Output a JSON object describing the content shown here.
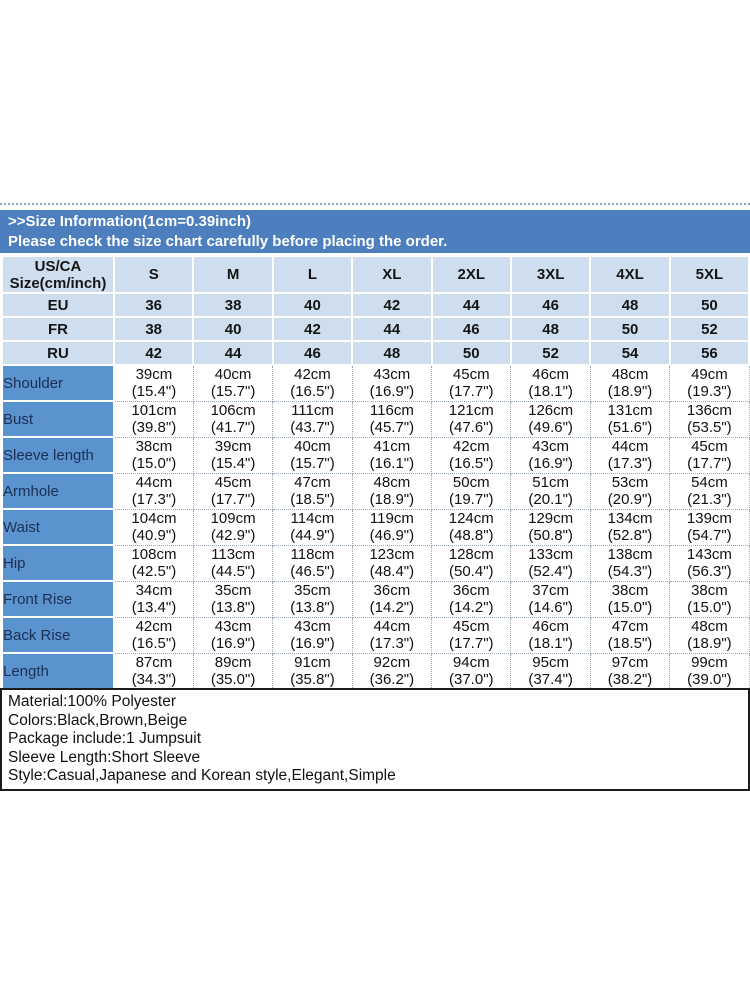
{
  "colors": {
    "banner_bg": "#4d7fbe",
    "banner_text": "#ffffff",
    "header_cell_bg": "#cfdeee",
    "label_cell_bg": "#5b93cf",
    "label_text": "#1b2f55",
    "grid_dotted": "#98a6b6",
    "divider": "#93a5bb"
  },
  "banner": {
    "line1": ">>Size Information(1cm=0.39inch)",
    "line2": "Please check the size chart carefully before placing the order."
  },
  "size_table": {
    "corner_line1": "US/CA",
    "corner_line2": "Size(cm/inch)",
    "size_headers": [
      "S",
      "M",
      "L",
      "XL",
      "2XL",
      "3XL",
      "4XL",
      "5XL"
    ],
    "region_rows": [
      {
        "label": "EU",
        "values": [
          "36",
          "38",
          "40",
          "42",
          "44",
          "46",
          "48",
          "50"
        ]
      },
      {
        "label": "FR",
        "values": [
          "38",
          "40",
          "42",
          "44",
          "46",
          "48",
          "50",
          "52"
        ]
      },
      {
        "label": "RU",
        "values": [
          "42",
          "44",
          "46",
          "48",
          "50",
          "52",
          "54",
          "56"
        ]
      }
    ],
    "measurement_rows": [
      {
        "label": "Shoulder",
        "cm": [
          "39cm",
          "40cm",
          "42cm",
          "43cm",
          "45cm",
          "46cm",
          "48cm",
          "49cm"
        ],
        "inch": [
          "(15.4\")",
          "(15.7\")",
          "(16.5\")",
          "(16.9\")",
          "(17.7\")",
          "(18.1\")",
          "(18.9\")",
          "(19.3\")"
        ]
      },
      {
        "label": "Bust",
        "cm": [
          "101cm",
          "106cm",
          "111cm",
          "116cm",
          "121cm",
          "126cm",
          "131cm",
          "136cm"
        ],
        "inch": [
          "(39.8\")",
          "(41.7\")",
          "(43.7\")",
          "(45.7\")",
          "(47.6\")",
          "(49.6\")",
          "(51.6\")",
          "(53.5\")"
        ]
      },
      {
        "label": "Sleeve length",
        "cm": [
          "38cm",
          "39cm",
          "40cm",
          "41cm",
          "42cm",
          "43cm",
          "44cm",
          "45cm"
        ],
        "inch": [
          "(15.0\")",
          "(15.4\")",
          "(15.7\")",
          "(16.1\")",
          "(16.5\")",
          "(16.9\")",
          "(17.3\")",
          "(17.7\")"
        ]
      },
      {
        "label": "Armhole",
        "cm": [
          "44cm",
          "45cm",
          "47cm",
          "48cm",
          "50cm",
          "51cm",
          "53cm",
          "54cm"
        ],
        "inch": [
          "(17.3\")",
          "(17.7\")",
          "(18.5\")",
          "(18.9\")",
          "(19.7\")",
          "(20.1\")",
          "(20.9\")",
          "(21.3\")"
        ]
      },
      {
        "label": "Waist",
        "cm": [
          "104cm",
          "109cm",
          "114cm",
          "119cm",
          "124cm",
          "129cm",
          "134cm",
          "139cm"
        ],
        "inch": [
          "(40.9\")",
          "(42.9\")",
          "(44.9\")",
          "(46.9\")",
          "(48.8\")",
          "(50.8\")",
          "(52.8\")",
          "(54.7\")"
        ]
      },
      {
        "label": "Hip",
        "cm": [
          "108cm",
          "113cm",
          "118cm",
          "123cm",
          "128cm",
          "133cm",
          "138cm",
          "143cm"
        ],
        "inch": [
          "(42.5\")",
          "(44.5\")",
          "(46.5\")",
          "(48.4\")",
          "(50.4\")",
          "(52.4\")",
          "(54.3\")",
          "(56.3\")"
        ]
      },
      {
        "label": "Front Rise",
        "cm": [
          "34cm",
          "35cm",
          "35cm",
          "36cm",
          "36cm",
          "37cm",
          "38cm",
          "38cm"
        ],
        "inch": [
          "(13.4\")",
          "(13.8\")",
          "(13.8\")",
          "(14.2\")",
          "(14.2\")",
          "(14.6\")",
          "(15.0\")",
          "(15.0\")"
        ]
      },
      {
        "label": "Back Rise",
        "cm": [
          "42cm",
          "43cm",
          "43cm",
          "44cm",
          "45cm",
          "46cm",
          "47cm",
          "48cm"
        ],
        "inch": [
          "(16.5\")",
          "(16.9\")",
          "(16.9\")",
          "(17.3\")",
          "(17.7\")",
          "(18.1\")",
          "(18.5\")",
          "(18.9\")"
        ]
      },
      {
        "label": "Length",
        "cm": [
          "87cm",
          "89cm",
          "91cm",
          "92cm",
          "94cm",
          "95cm",
          "97cm",
          "99cm"
        ],
        "inch": [
          "(34.3\")",
          "(35.0\")",
          "(35.8\")",
          "(36.2\")",
          "(37.0\")",
          "(37.4\")",
          "(38.2\")",
          "(39.0\")"
        ]
      }
    ]
  },
  "product_info": {
    "lines": [
      "Material:100% Polyester",
      "Colors:Black,Brown,Beige",
      "Package include:1 Jumpsuit",
      "Sleeve Length:Short Sleeve",
      "Style:Casual,Japanese and Korean style,Elegant,Simple"
    ]
  },
  "chart_data": {
    "type": "table",
    "title": ">>Size Information(1cm=0.39inch)",
    "subtitle": "Please check the size chart carefully before placing the order.",
    "columns": [
      "US/CA Size(cm/inch)",
      "S",
      "M",
      "L",
      "XL",
      "2XL",
      "3XL",
      "4XL",
      "5XL"
    ],
    "rows": [
      [
        "EU",
        "36",
        "38",
        "40",
        "42",
        "44",
        "46",
        "48",
        "50"
      ],
      [
        "FR",
        "38",
        "40",
        "42",
        "44",
        "46",
        "48",
        "50",
        "52"
      ],
      [
        "RU",
        "42",
        "44",
        "46",
        "48",
        "50",
        "52",
        "54",
        "56"
      ],
      [
        "Shoulder",
        "39cm (15.4\")",
        "40cm (15.7\")",
        "42cm (16.5\")",
        "43cm (16.9\")",
        "45cm (17.7\")",
        "46cm (18.1\")",
        "48cm (18.9\")",
        "49cm (19.3\")"
      ],
      [
        "Bust",
        "101cm (39.8\")",
        "106cm (41.7\")",
        "111cm (43.7\")",
        "116cm (45.7\")",
        "121cm (47.6\")",
        "126cm (49.6\")",
        "131cm (51.6\")",
        "136cm (53.5\")"
      ],
      [
        "Sleeve length",
        "38cm (15.0\")",
        "39cm (15.4\")",
        "40cm (15.7\")",
        "41cm (16.1\")",
        "42cm (16.5\")",
        "43cm (16.9\")",
        "44cm (17.3\")",
        "45cm (17.7\")"
      ],
      [
        "Armhole",
        "44cm (17.3\")",
        "45cm (17.7\")",
        "47cm (18.5\")",
        "48cm (18.9\")",
        "50cm (19.7\")",
        "51cm (20.1\")",
        "53cm (20.9\")",
        "54cm (21.3\")"
      ],
      [
        "Waist",
        "104cm (40.9\")",
        "109cm (42.9\")",
        "114cm (44.9\")",
        "119cm (46.9\")",
        "124cm (48.8\")",
        "129cm (50.8\")",
        "134cm (52.8\")",
        "139cm (54.7\")"
      ],
      [
        "Hip",
        "108cm (42.5\")",
        "113cm (44.5\")",
        "118cm (46.5\")",
        "123cm (48.4\")",
        "128cm (50.4\")",
        "133cm (52.4\")",
        "138cm (54.3\")",
        "143cm (56.3\")"
      ],
      [
        "Front Rise",
        "34cm (13.4\")",
        "35cm (13.8\")",
        "35cm (13.8\")",
        "36cm (14.2\")",
        "36cm (14.2\")",
        "37cm (14.6\")",
        "38cm (15.0\")",
        "38cm (15.0\")"
      ],
      [
        "Back Rise",
        "42cm (16.5\")",
        "43cm (16.9\")",
        "43cm (16.9\")",
        "44cm (17.3\")",
        "45cm (17.7\")",
        "46cm (18.1\")",
        "47cm (18.5\")",
        "48cm (18.9\")"
      ],
      [
        "Length",
        "87cm (34.3\")",
        "89cm (35.0\")",
        "91cm (35.8\")",
        "92cm (36.2\")",
        "94cm (37.0\")",
        "95cm (37.4\")",
        "97cm (38.2\")",
        "99cm (39.0\")"
      ]
    ],
    "layout": {
      "grid": true,
      "header_fill": "#cfdeee",
      "row_label_fill": "#5b93cf"
    }
  }
}
